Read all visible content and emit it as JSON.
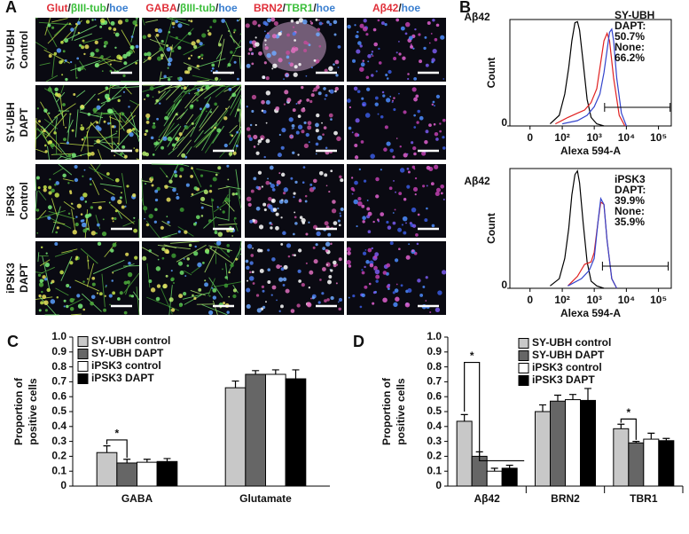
{
  "panel_a": {
    "label": "A",
    "column_headers": [
      [
        {
          "text": "Glut",
          "color": "#e0303a"
        },
        {
          "text": "/",
          "color": "#222222"
        },
        {
          "text": "βIII-tub",
          "color": "#3cbf3c"
        },
        {
          "text": "/",
          "color": "#222222"
        },
        {
          "text": "hoe",
          "color": "#3a7fd0"
        }
      ],
      [
        {
          "text": "GABA",
          "color": "#e0303a"
        },
        {
          "text": "/",
          "color": "#222222"
        },
        {
          "text": "βIII-tub",
          "color": "#3cbf3c"
        },
        {
          "text": "/",
          "color": "#222222"
        },
        {
          "text": "hoe",
          "color": "#3a7fd0"
        }
      ],
      [
        {
          "text": "BRN2",
          "color": "#e0303a"
        },
        {
          "text": "/",
          "color": "#222222"
        },
        {
          "text": "TBR1",
          "color": "#3cbf3c"
        },
        {
          "text": "/",
          "color": "#222222"
        },
        {
          "text": "hoe",
          "color": "#3a7fd0"
        }
      ],
      [
        {
          "text": "Aβ42",
          "color": "#e0303a"
        },
        {
          "text": "/",
          "color": "#222222"
        },
        {
          "text": "hoe",
          "color": "#3a7fd0"
        }
      ]
    ],
    "row_labels": [
      [
        "SY-UBH",
        "Control"
      ],
      [
        "SY-UBH",
        "DAPT"
      ],
      [
        "iPSK3",
        "Control"
      ],
      [
        "iPSK3",
        "DAPT"
      ]
    ]
  },
  "chart_data": [
    {
      "type": "line",
      "panel_label": "B",
      "title": "Aβ42",
      "xlabel": "Alexa 594-A",
      "ylabel": "Count",
      "xscale": "biexponential",
      "xlim": [
        -40,
        250000
      ],
      "xticks": [
        0,
        {
          "value": 100,
          "label": "10²"
        },
        {
          "value": 1000,
          "label": "10³"
        },
        {
          "value": 10000,
          "label": "10⁴"
        },
        {
          "value": 100000,
          "label": "10⁵"
        }
      ],
      "ylim": [
        0,
        100
      ],
      "yticks": [
        0
      ],
      "gate": [
        2100,
        230000
      ],
      "series": [
        {
          "name": "SY-UBH",
          "color": "#000000",
          "x": [
            40,
            80,
            120,
            160,
            200,
            250,
            300,
            350,
            450,
            600,
            800,
            1200,
            2000
          ],
          "values": [
            2,
            10,
            30,
            55,
            80,
            97,
            98,
            90,
            60,
            25,
            8,
            2,
            0
          ]
        },
        {
          "name": "DAPT:",
          "gate_label": "50.7%",
          "color": "#e02020",
          "x": [
            60,
            150,
            300,
            500,
            800,
            1200,
            1600,
            2000,
            2500,
            3000,
            4000,
            6000,
            9000
          ],
          "values": [
            2,
            8,
            12,
            15,
            22,
            35,
            60,
            80,
            87,
            80,
            45,
            10,
            0
          ]
        },
        {
          "name": "None:",
          "gate_label": "66.2%",
          "color": "#3344cc",
          "x": [
            100,
            300,
            600,
            1000,
            1500,
            2000,
            3000,
            3500,
            4000,
            5000,
            7000,
            10000
          ],
          "values": [
            2,
            5,
            10,
            18,
            30,
            50,
            88,
            91,
            80,
            45,
            12,
            0
          ]
        }
      ]
    },
    {
      "type": "line",
      "title": "Aβ42",
      "xlabel": "Alexa 594-A",
      "ylabel": "Count",
      "xscale": "biexponential",
      "xlim": [
        -40,
        250000
      ],
      "xticks": [
        0,
        {
          "value": 100,
          "label": "10²"
        },
        {
          "value": 1000,
          "label": "10³"
        },
        {
          "value": 10000,
          "label": "10⁴"
        },
        {
          "value": 100000,
          "label": "10⁵"
        }
      ],
      "ylim": [
        0,
        100
      ],
      "yticks": [
        0
      ],
      "gate": [
        1800,
        200000
      ],
      "series": [
        {
          "name": "iPSK3",
          "color": "#000000",
          "x": [
            40,
            80,
            120,
            160,
            200,
            250,
            300,
            350,
            450,
            600,
            800,
            1200,
            2000
          ],
          "values": [
            2,
            8,
            25,
            50,
            78,
            95,
            98,
            88,
            55,
            22,
            6,
            2,
            0
          ]
        },
        {
          "name": "DAPT:",
          "gate_label": "39.9%",
          "color": "#e02020",
          "x": [
            150,
            300,
            500,
            800,
            1000,
            1300,
            1600,
            2000,
            2500,
            3500,
            5000
          ],
          "values": [
            2,
            10,
            20,
            22,
            30,
            55,
            72,
            70,
            40,
            8,
            0
          ]
        },
        {
          "name": "None:",
          "gate_label": "35.9%",
          "color": "#3344cc",
          "x": [
            150,
            400,
            700,
            1000,
            1300,
            1600,
            2000,
            2500,
            3500,
            5000
          ],
          "values": [
            2,
            8,
            15,
            25,
            55,
            75,
            70,
            40,
            8,
            0
          ]
        }
      ]
    },
    {
      "type": "bar",
      "panel_label": "C",
      "ylabel": [
        "Proportion of",
        "positive cells"
      ],
      "ylim": [
        0,
        1
      ],
      "yticks": [
        0,
        0.1,
        0.2,
        0.3,
        0.4,
        0.5,
        0.6,
        0.7,
        0.8,
        0.9,
        {
          "value": 1,
          "label": "1.0"
        }
      ],
      "categories": [
        "GABA",
        "Glutamate"
      ],
      "series": [
        {
          "name": "SY-UBH control",
          "color": "#c8c8c8",
          "values": [
            0.225,
            0.66
          ],
          "errors": [
            0.045,
            0.045
          ]
        },
        {
          "name": "SY-UBH DAPT",
          "color": "#666666",
          "values": [
            0.155,
            0.75
          ],
          "errors": [
            0.025,
            0.025
          ]
        },
        {
          "name": "iPSK3 control",
          "color": "#ffffff",
          "values": [
            0.16,
            0.75
          ],
          "errors": [
            0.02,
            0.03
          ]
        },
        {
          "name": "iPSK3 DAPT",
          "color": "#000000",
          "values": [
            0.165,
            0.72
          ],
          "errors": [
            0.02,
            0.06
          ]
        }
      ],
      "annotations": [
        "*"
      ]
    },
    {
      "type": "bar",
      "panel_label": "D",
      "ylabel": [
        "Proportion of",
        "positive cells"
      ],
      "ylim": [
        0,
        1
      ],
      "yticks": [
        0,
        0.1,
        0.2,
        0.3,
        0.4,
        0.5,
        0.6,
        0.7,
        0.8,
        0.9,
        {
          "value": 1,
          "label": "1.0"
        }
      ],
      "categories": [
        "Aβ42",
        "BRN2",
        "TBR1"
      ],
      "series": [
        {
          "name": "SY-UBH control",
          "color": "#c8c8c8",
          "values": [
            0.435,
            0.5,
            0.385
          ],
          "errors": [
            0.045,
            0.045,
            0.03
          ]
        },
        {
          "name": "SY-UBH DAPT",
          "color": "#666666",
          "values": [
            0.2,
            0.57,
            0.29
          ],
          "errors": [
            0.03,
            0.04,
            0.01
          ]
        },
        {
          "name": "iPSK3 control",
          "color": "#ffffff",
          "values": [
            0.1,
            0.58,
            0.315
          ],
          "errors": [
            0.02,
            0.035,
            0.04
          ]
        },
        {
          "name": "iPSK3 DAPT",
          "color": "#000000",
          "values": [
            0.12,
            0.575,
            0.305
          ],
          "errors": [
            0.02,
            0.08,
            0.015
          ]
        }
      ],
      "annotations": [
        "*",
        "*"
      ]
    }
  ]
}
